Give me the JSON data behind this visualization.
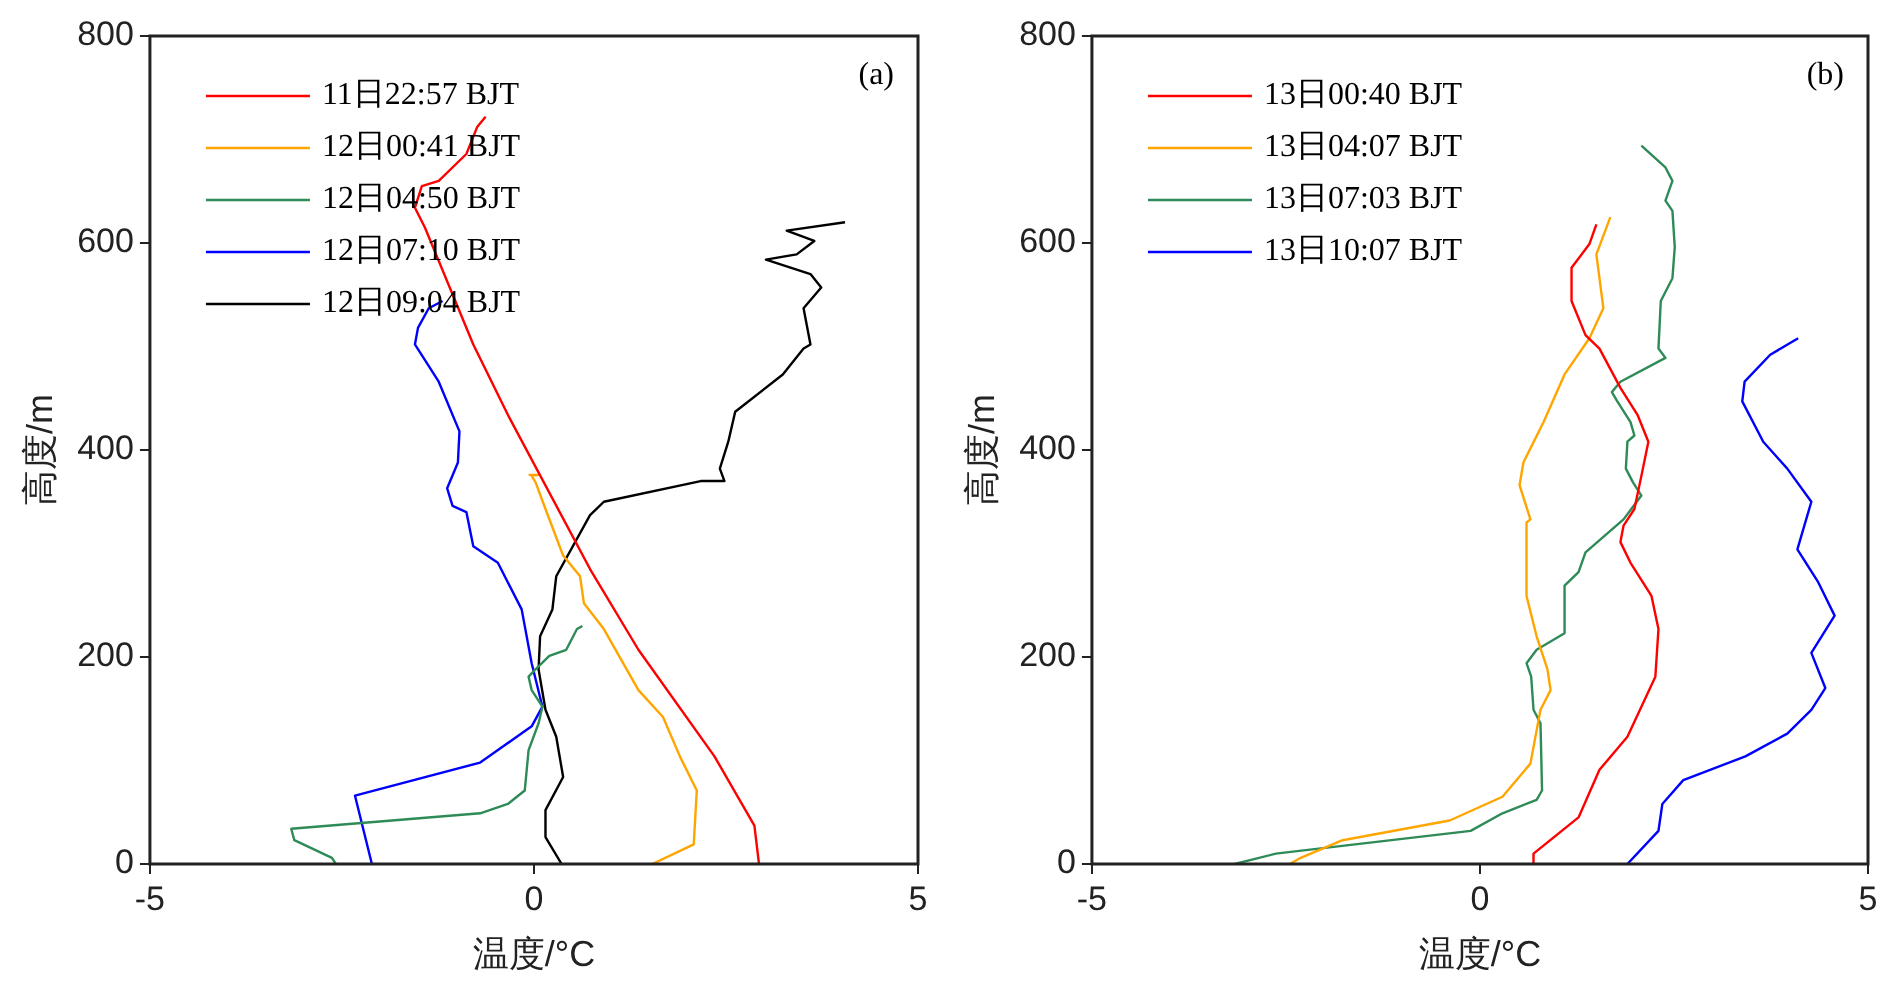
{
  "chart_data": [
    {
      "type": "line",
      "xlabel": "温度/°C",
      "ylabel": "高度/m",
      "annotations": [
        "(a)"
      ],
      "xlim": [
        -5,
        5
      ],
      "xticks": [
        -5,
        0,
        5
      ],
      "ylim": [
        0,
        800
      ],
      "yticks": [
        0,
        200,
        400,
        600,
        800
      ],
      "legend": "top left",
      "grid": false,
      "series": [
        {
          "name": "11日22:57 BJT",
          "color": "#ff0000",
          "x": [
            2.93,
            2.87,
            2.35,
            1.36,
            0.73,
            -0.34,
            -0.79,
            -1.42,
            -1.55,
            -1.46,
            -1.24,
            -0.88,
            -0.74,
            -0.63
          ],
          "values": [
            0,
            37,
            104,
            207,
            285,
            434,
            502,
            615,
            634,
            655,
            660,
            686,
            712,
            722
          ]
        },
        {
          "name": "12日00:41 BJT",
          "color": "#ffa500",
          "x": [
            1.54,
            2.08,
            2.12,
            1.9,
            1.68,
            1.36,
            0.91,
            0.65,
            0.6,
            0.38,
            0.15,
            0.02,
            -0.03,
            0.06,
            -0.07
          ],
          "values": [
            0,
            19,
            71,
            104,
            142,
            168,
            227,
            252,
            278,
            298,
            343,
            369,
            375,
            376,
            376
          ]
        },
        {
          "name": "12日04:50 BJT",
          "color": "#2e8b57",
          "x": [
            -2.58,
            -2.63,
            -3.12,
            -3.16,
            -0.7,
            -0.34,
            -0.12,
            -0.07,
            0.06,
            0.11,
            -0.03,
            -0.07,
            0.02,
            0.2,
            0.42,
            0.56,
            0.63
          ],
          "values": [
            0,
            6,
            23,
            34,
            49,
            58,
            71,
            110,
            136,
            152,
            168,
            181,
            188,
            201,
            207,
            227,
            230
          ]
        },
        {
          "name": "12日07:10 BJT",
          "color": "#0000ff",
          "x": [
            -2.11,
            -2.33,
            -0.7,
            -0.03,
            0.11,
            -0.03,
            -0.16,
            -0.47,
            -0.79,
            -0.88,
            -1.06,
            -1.13,
            -0.99,
            -0.97,
            -1.24,
            -1.55,
            -1.51,
            -1.37,
            -1.19
          ],
          "values": [
            0,
            66,
            98,
            133,
            152,
            194,
            246,
            291,
            307,
            340,
            346,
            363,
            388,
            418,
            466,
            502,
            518,
            537,
            544
          ]
        },
        {
          "name": "12日09:04 BJT",
          "color": "#000000",
          "x": [
            0.36,
            0.15,
            0.15,
            0.38,
            0.29,
            0.15,
            0.06,
            0.08,
            0.24,
            0.29,
            0.73,
            0.91,
            2.17,
            2.48,
            2.42,
            2.53,
            2.62,
            3.24,
            3.51,
            3.6,
            3.51,
            3.74,
            3.6,
            3.02,
            3.42,
            3.65,
            3.29,
            4.05
          ],
          "values": [
            0,
            26,
            52,
            84,
            123,
            149,
            188,
            220,
            246,
            278,
            337,
            350,
            370,
            370,
            382,
            408,
            437,
            473,
            498,
            502,
            537,
            557,
            570,
            584,
            589,
            602,
            612,
            620
          ]
        }
      ]
    },
    {
      "type": "line",
      "xlabel": "温度/°C",
      "ylabel": "高度/m",
      "annotations": [
        "(b)"
      ],
      "xlim": [
        -5,
        5
      ],
      "xticks": [
        -5,
        0,
        5
      ],
      "ylim": [
        0,
        800
      ],
      "yticks": [
        0,
        200,
        400,
        600,
        800
      ],
      "legend": "top left",
      "grid": false,
      "series": [
        {
          "name": "13日00:40 BJT",
          "color": "#ff0000",
          "x": [
            0.69,
            0.69,
            1.27,
            1.54,
            1.9,
            2.26,
            2.3,
            2.21,
            1.94,
            1.81,
            1.85,
            1.99,
            2.08,
            2.17,
            2.03,
            1.81,
            1.54,
            1.36,
            1.18,
            1.18,
            1.41,
            1.5
          ],
          "values": [
            0,
            10,
            45,
            91,
            123,
            181,
            227,
            259,
            291,
            311,
            327,
            343,
            375,
            408,
            434,
            460,
            498,
            511,
            544,
            576,
            599,
            618
          ]
        },
        {
          "name": "13日04:07 BJT",
          "color": "#ffa500",
          "x": [
            -2.45,
            -2.31,
            -1.77,
            -0.39,
            0.29,
            0.65,
            0.78,
            0.91,
            0.87,
            0.73,
            0.6,
            0.6,
            0.65,
            0.51,
            0.56,
            0.82,
            1.09,
            1.41,
            1.59,
            1.5,
            1.68
          ],
          "values": [
            0,
            6,
            23,
            42,
            65,
            97,
            149,
            168,
            188,
            220,
            259,
            330,
            333,
            366,
            388,
            427,
            473,
            508,
            537,
            589,
            625
          ]
        },
        {
          "name": "13日07:03 BJT",
          "color": "#2e8b57",
          "x": [
            -3.16,
            -2.63,
            -0.12,
            0.29,
            0.73,
            0.8,
            0.78,
            0.69,
            0.66,
            0.6,
            0.73,
            1.09,
            1.09,
            1.27,
            1.36,
            1.85,
            2.08,
            1.97,
            1.88,
            1.9,
            1.99,
            1.94,
            1.77,
            1.7,
            1.81,
            2.39,
            2.3,
            2.33,
            2.48,
            2.51,
            2.48,
            2.39,
            2.48,
            2.39,
            2.08
          ],
          "values": [
            0,
            10,
            32,
            49,
            62,
            71,
            136,
            149,
            181,
            194,
            207,
            223,
            269,
            282,
            301,
            333,
            356,
            369,
            382,
            408,
            414,
            427,
            447,
            456,
            466,
            489,
            498,
            544,
            566,
            596,
            631,
            641,
            660,
            673,
            694
          ]
        },
        {
          "name": "13日10:07 BJT",
          "color": "#0000ff",
          "x": [
            1.9,
            2.3,
            2.35,
            2.62,
            3.42,
            3.96,
            4.27,
            4.45,
            4.27,
            4.57,
            4.36,
            4.09,
            4.27,
            3.96,
            3.65,
            3.38,
            3.41,
            3.74,
            4.1
          ],
          "values": [
            0,
            32,
            58,
            81,
            104,
            126,
            149,
            170,
            204,
            240,
            272,
            304,
            350,
            382,
            408,
            447,
            466,
            492,
            508
          ]
        }
      ]
    }
  ]
}
